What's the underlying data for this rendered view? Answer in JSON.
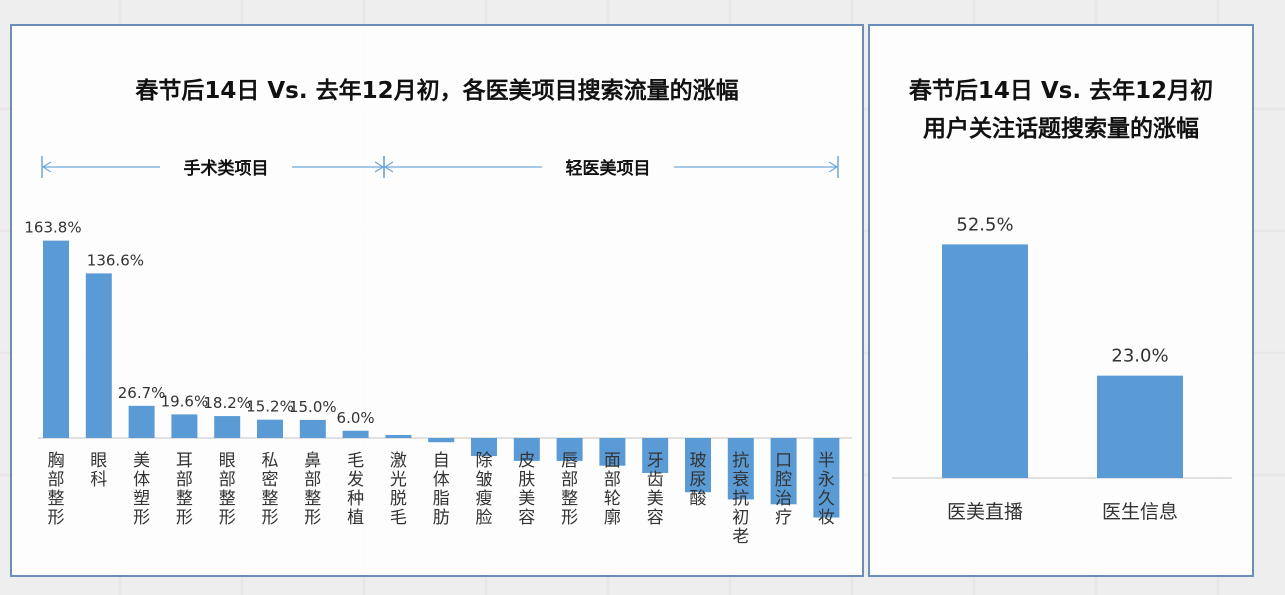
{
  "left_chart": {
    "title": "春节后14日 Vs. 去年12月初，各医美项目搜索流量的涨幅",
    "group_labels": [
      "手术类项目",
      "轻医美项目"
    ]
  },
  "right_chart": {
    "title_line1": "春节后14日 Vs. 去年12月初",
    "title_line2": "用户关注话题搜索量的涨幅"
  },
  "chart_data": [
    {
      "type": "bar",
      "title": "春节后14日 Vs. 去年12月初，各医美项目搜索流量的涨幅",
      "categories": [
        "胸部整形",
        "眼科",
        "美体塑形",
        "耳部整形",
        "眼部整形",
        "私密整形",
        "鼻部整形",
        "毛发种植",
        "激光脱毛",
        "自体脂肪",
        "除皱瘦脸",
        "皮肤美容",
        "唇部整形",
        "面部轮廓",
        "牙齿美容",
        "玻尿酸",
        "抗衰抗初老",
        "口腔治疗",
        "半永久妆"
      ],
      "values": [
        163.8,
        136.6,
        26.7,
        19.6,
        18.2,
        15.2,
        15.0,
        6.0,
        2.5,
        -3.5,
        -15.0,
        -19.0,
        -19.0,
        -23.0,
        -29.0,
        -45.0,
        -51.0,
        -55.0,
        -66.0
      ],
      "data_labels": [
        "163.8%",
        "136.6%",
        "26.7%",
        "19.6%",
        "18.2%",
        "15.2%",
        "15.0%",
        "6.0%",
        "",
        "",
        "",
        "",
        "",
        "",
        "",
        "",
        "",
        "",
        ""
      ],
      "groups": [
        {
          "name": "手术类项目",
          "categories": [
            "胸部整形",
            "眼科",
            "美体塑形",
            "耳部整形",
            "眼部整形",
            "私密整形",
            "鼻部整形",
            "毛发种植"
          ]
        },
        {
          "name": "轻医美项目",
          "categories": [
            "激光脱毛",
            "自体脂肪",
            "除皱瘦脸",
            "皮肤美容",
            "唇部整形",
            "面部轮廓",
            "牙齿美容",
            "玻尿酸",
            "抗衰抗初老",
            "口腔治疗",
            "半永久妆"
          ]
        }
      ],
      "ylim": [
        -66,
        164
      ],
      "bar_color": "#5b9bd5",
      "grid": false
    },
    {
      "type": "bar",
      "title": "春节后14日 Vs. 去年12月初 用户关注话题搜索量的涨幅",
      "categories": [
        "医美直播",
        "医生信息"
      ],
      "values": [
        52.5,
        23.0
      ],
      "data_labels": [
        "52.5%",
        "23.0%"
      ],
      "ylim": [
        0,
        60
      ],
      "bar_color": "#5b9bd5",
      "grid": false
    }
  ]
}
